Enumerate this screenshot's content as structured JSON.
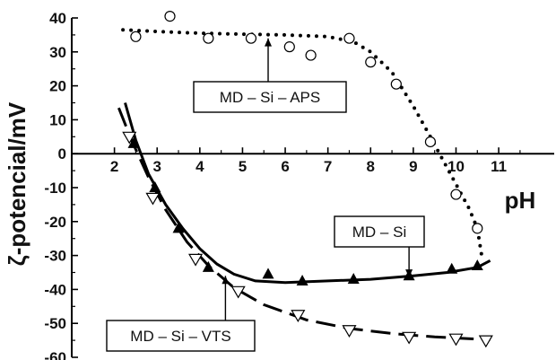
{
  "chart_data": {
    "type": "scatter",
    "ylabel": "ζ-potencial/mV",
    "xlabel": "pH",
    "xlim": [
      1.0,
      12.3
    ],
    "ylim": [
      -60,
      40
    ],
    "x_ticks": [
      2,
      3,
      4,
      5,
      6,
      7,
      8,
      9,
      10,
      11
    ],
    "y_ticks": [
      -60,
      -50,
      -40,
      -30,
      -20,
      -10,
      0,
      10,
      20,
      30,
      40
    ],
    "grid": false,
    "series": [
      {
        "name": "MD – Si – APS",
        "marker": "open-circle",
        "line": "dotted",
        "points": [
          [
            2.5,
            34.5
          ],
          [
            3.3,
            40.5
          ],
          [
            4.2,
            34.0
          ],
          [
            5.2,
            34.0
          ],
          [
            6.1,
            31.5
          ],
          [
            6.6,
            29.0
          ],
          [
            7.5,
            34.0
          ],
          [
            8.0,
            27.0
          ],
          [
            8.6,
            20.5
          ],
          [
            9.4,
            3.5
          ],
          [
            10.0,
            -12.0
          ],
          [
            10.5,
            -22.0
          ]
        ],
        "fit": [
          [
            2.2,
            36.5
          ],
          [
            3.0,
            36.0
          ],
          [
            4.0,
            35.5
          ],
          [
            5.0,
            35.2
          ],
          [
            6.0,
            35.0
          ],
          [
            7.0,
            34.5
          ],
          [
            7.6,
            33.0
          ],
          [
            8.0,
            30.0
          ],
          [
            8.5,
            24.0
          ],
          [
            9.0,
            14.0
          ],
          [
            9.4,
            5.0
          ],
          [
            9.7,
            -2.0
          ],
          [
            10.0,
            -9.0
          ],
          [
            10.3,
            -16.0
          ],
          [
            10.5,
            -22.0
          ],
          [
            10.6,
            -30.0
          ]
        ]
      },
      {
        "name": "MD – Si",
        "marker": "filled-triangle",
        "line": "solid",
        "points": [
          [
            2.45,
            3.0
          ],
          [
            2.95,
            -10.0
          ],
          [
            3.5,
            -22.0
          ],
          [
            4.2,
            -33.5
          ],
          [
            5.6,
            -35.5
          ],
          [
            6.4,
            -37.5
          ],
          [
            7.6,
            -37.0
          ],
          [
            8.9,
            -36.0
          ],
          [
            9.9,
            -34.0
          ],
          [
            10.5,
            -33.0
          ]
        ],
        "fit": [
          [
            2.25,
            15.0
          ],
          [
            2.5,
            4.0
          ],
          [
            2.8,
            -6.0
          ],
          [
            3.2,
            -15.0
          ],
          [
            3.6,
            -22.0
          ],
          [
            4.0,
            -28.0
          ],
          [
            4.4,
            -32.5
          ],
          [
            4.8,
            -35.5
          ],
          [
            5.3,
            -37.5
          ],
          [
            6.0,
            -38.0
          ],
          [
            7.0,
            -37.5
          ],
          [
            8.0,
            -37.0
          ],
          [
            9.0,
            -36.0
          ],
          [
            9.8,
            -35.0
          ],
          [
            10.5,
            -33.5
          ],
          [
            10.8,
            -31.5
          ]
        ]
      },
      {
        "name": "MD – Si – VTS",
        "marker": "open-inverted-triangle",
        "line": "dashed",
        "points": [
          [
            2.35,
            5.0
          ],
          [
            2.9,
            -13.0
          ],
          [
            3.9,
            -31.0
          ],
          [
            4.9,
            -40.5
          ],
          [
            6.3,
            -47.5
          ],
          [
            7.5,
            -52.0
          ],
          [
            8.9,
            -54.0
          ],
          [
            10.0,
            -54.5
          ],
          [
            10.7,
            -55.0
          ]
        ],
        "fit": [
          [
            2.1,
            13.5
          ],
          [
            2.4,
            4.0
          ],
          [
            2.8,
            -7.0
          ],
          [
            3.2,
            -16.5
          ],
          [
            3.7,
            -26.0
          ],
          [
            4.2,
            -33.0
          ],
          [
            4.8,
            -39.5
          ],
          [
            5.5,
            -44.5
          ],
          [
            6.5,
            -49.0
          ],
          [
            7.5,
            -51.5
          ],
          [
            8.5,
            -53.0
          ],
          [
            9.5,
            -54.0
          ],
          [
            10.3,
            -54.5
          ],
          [
            10.8,
            -54.8
          ]
        ]
      }
    ],
    "annotations": [
      {
        "text": "MD – Si – APS",
        "target": [
          5.6,
          34.0
        ]
      },
      {
        "text": "MD – Si",
        "target": [
          8.9,
          -36.5
        ]
      },
      {
        "text": "MD – Si – VTS",
        "target": [
          4.6,
          -36.0
        ]
      }
    ]
  }
}
